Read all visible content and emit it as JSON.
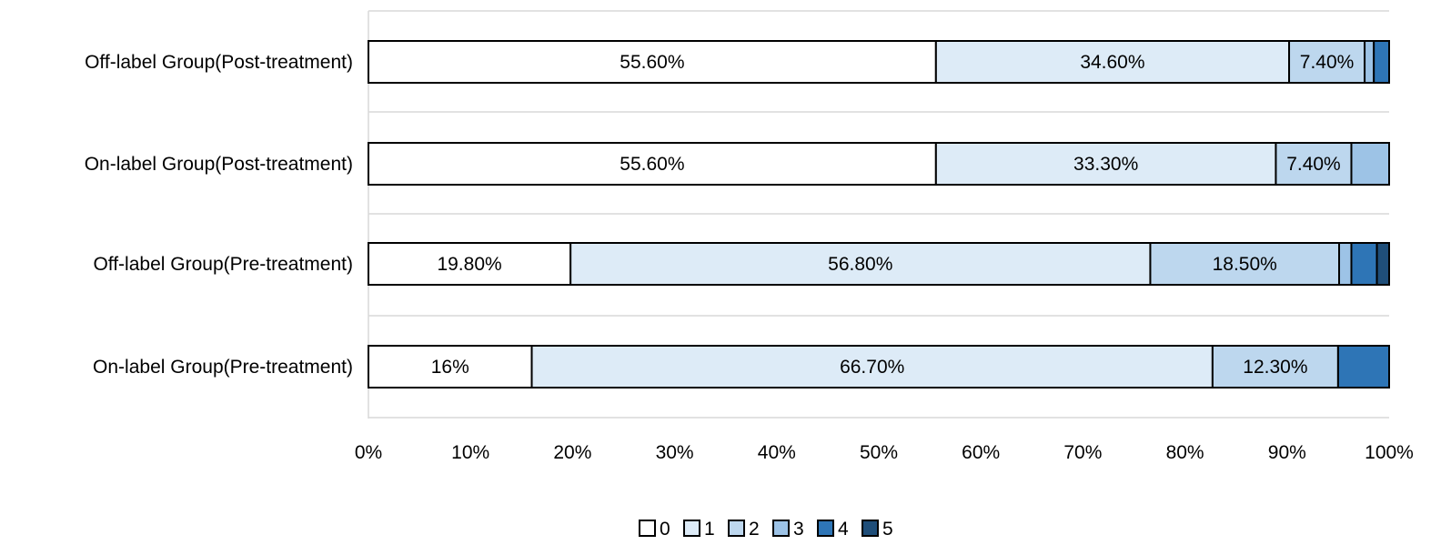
{
  "chart_data": {
    "type": "bar",
    "orientation": "horizontal",
    "stacked": "percent",
    "title": "",
    "xlabel": "",
    "ylabel": "",
    "xlim": [
      0,
      100
    ],
    "x_ticks": [
      "0%",
      "10%",
      "20%",
      "30%",
      "40%",
      "50%",
      "60%",
      "70%",
      "80%",
      "90%",
      "100%"
    ],
    "grid": "horizontal",
    "legend_position": "bottom",
    "categories": [
      "Off-label Group(Post-treatment)",
      "On-label Group(Post-treatment)",
      "Off-label Group(Pre-treatment)",
      "On-label Group(Pre-treatment)"
    ],
    "series": [
      {
        "name": "0",
        "color": "#ffffff",
        "values": [
          55.6,
          55.6,
          19.8,
          16.0
        ]
      },
      {
        "name": "1",
        "color": "#ddebf7",
        "values": [
          34.6,
          33.3,
          56.8,
          66.7
        ]
      },
      {
        "name": "2",
        "color": "#bdd7ee",
        "values": [
          7.4,
          7.4,
          18.5,
          12.3
        ]
      },
      {
        "name": "3",
        "color": "#9dc3e6",
        "values": [
          0.9,
          3.7,
          1.2,
          0.0
        ]
      },
      {
        "name": "4",
        "color": "#2e75b6",
        "values": [
          1.5,
          0.0,
          2.5,
          5.0
        ]
      },
      {
        "name": "5",
        "color": "#1f4e79",
        "values": [
          0.0,
          0.0,
          1.2,
          0.0
        ]
      }
    ],
    "data_labels": [
      [
        "55.60%",
        "34.60%",
        "7.40%",
        "",
        "",
        ""
      ],
      [
        "55.60%",
        "33.30%",
        "7.40%",
        "",
        "",
        ""
      ],
      [
        "19.80%",
        "56.80%",
        "18.50%",
        "",
        "",
        ""
      ],
      [
        "16%",
        "66.70%",
        "12.30%",
        "",
        "",
        ""
      ]
    ]
  }
}
